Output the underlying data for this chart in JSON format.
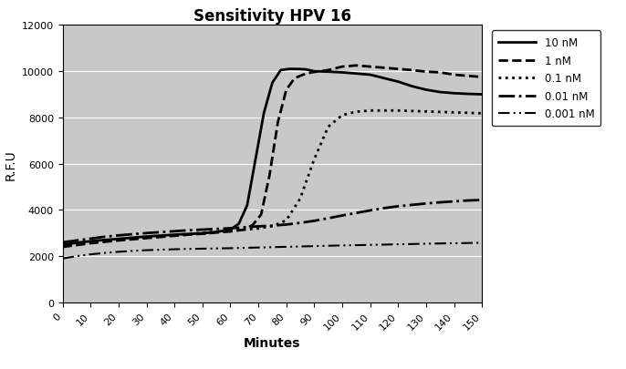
{
  "title": "Sensitivity HPV 16",
  "xlabel": "Minutes",
  "ylabel": "R.F.U",
  "xlim": [
    0,
    150
  ],
  "ylim": [
    0,
    12000
  ],
  "xticks": [
    0,
    10,
    20,
    30,
    40,
    50,
    60,
    70,
    80,
    90,
    100,
    110,
    120,
    130,
    140,
    150
  ],
  "yticks": [
    0,
    2000,
    4000,
    6000,
    8000,
    10000,
    12000
  ],
  "background_color": "#c8c8c8",
  "series": [
    {
      "label": "10 nM",
      "linestyle": "solid",
      "linewidth": 2.0,
      "color": "#000000",
      "x": [
        0,
        5,
        10,
        15,
        20,
        25,
        30,
        35,
        40,
        45,
        50,
        55,
        60,
        63,
        66,
        69,
        72,
        75,
        78,
        81,
        84,
        87,
        90,
        95,
        100,
        105,
        110,
        115,
        120,
        125,
        130,
        135,
        140,
        145,
        150
      ],
      "y": [
        2500,
        2580,
        2650,
        2700,
        2750,
        2800,
        2850,
        2890,
        2930,
        2960,
        2990,
        3050,
        3150,
        3400,
        4200,
        6200,
        8200,
        9500,
        10050,
        10100,
        10100,
        10080,
        10000,
        9980,
        9950,
        9900,
        9850,
        9700,
        9550,
        9350,
        9200,
        9100,
        9050,
        9020,
        9000
      ]
    },
    {
      "label": "1 nM",
      "linestyle": "dashed",
      "linewidth": 2.0,
      "color": "#000000",
      "x": [
        0,
        5,
        10,
        15,
        20,
        25,
        30,
        35,
        40,
        45,
        50,
        55,
        60,
        65,
        68,
        71,
        74,
        77,
        80,
        83,
        86,
        89,
        92,
        95,
        100,
        105,
        110,
        115,
        120,
        125,
        130,
        135,
        140,
        145,
        150
      ],
      "y": [
        2400,
        2480,
        2560,
        2620,
        2680,
        2730,
        2780,
        2830,
        2880,
        2930,
        2970,
        3020,
        3070,
        3150,
        3350,
        3800,
        5500,
        7800,
        9200,
        9700,
        9850,
        9950,
        10000,
        10050,
        10200,
        10250,
        10200,
        10150,
        10100,
        10050,
        9980,
        9950,
        9850,
        9800,
        9750
      ]
    },
    {
      "label": "0.1 nM",
      "linestyle": "dotted",
      "linewidth": 2.0,
      "color": "#000000",
      "x": [
        0,
        5,
        10,
        15,
        20,
        25,
        30,
        35,
        40,
        45,
        50,
        55,
        60,
        65,
        70,
        75,
        80,
        85,
        90,
        95,
        100,
        105,
        110,
        115,
        120,
        125,
        130,
        135,
        140,
        145,
        150
      ],
      "y": [
        2450,
        2530,
        2610,
        2660,
        2710,
        2760,
        2810,
        2860,
        2910,
        2960,
        3010,
        3060,
        3100,
        3150,
        3200,
        3300,
        3550,
        4500,
        6200,
        7600,
        8100,
        8250,
        8300,
        8300,
        8300,
        8280,
        8260,
        8240,
        8220,
        8200,
        8180
      ]
    },
    {
      "label": "0.01 nM",
      "linestyle": "dashdot",
      "linewidth": 2.0,
      "color": "#000000",
      "x": [
        0,
        5,
        10,
        15,
        20,
        25,
        30,
        35,
        40,
        45,
        50,
        55,
        60,
        65,
        70,
        75,
        80,
        85,
        90,
        95,
        100,
        105,
        110,
        115,
        120,
        125,
        130,
        135,
        140,
        145,
        150
      ],
      "y": [
        2600,
        2680,
        2760,
        2840,
        2900,
        2950,
        3000,
        3040,
        3080,
        3120,
        3150,
        3180,
        3210,
        3250,
        3290,
        3320,
        3370,
        3440,
        3530,
        3640,
        3760,
        3870,
        3980,
        4080,
        4160,
        4220,
        4280,
        4330,
        4370,
        4410,
        4430
      ]
    },
    {
      "label": "0.001 nM",
      "linestyle": "dashdotdotted",
      "linewidth": 1.5,
      "color": "#000000",
      "x": [
        0,
        5,
        10,
        15,
        20,
        25,
        30,
        35,
        40,
        45,
        50,
        55,
        60,
        65,
        70,
        75,
        80,
        85,
        90,
        95,
        100,
        105,
        110,
        115,
        120,
        125,
        130,
        135,
        140,
        145,
        150
      ],
      "y": [
        1900,
        2000,
        2080,
        2140,
        2190,
        2230,
        2260,
        2280,
        2300,
        2315,
        2325,
        2335,
        2345,
        2360,
        2375,
        2390,
        2405,
        2420,
        2435,
        2450,
        2465,
        2475,
        2490,
        2500,
        2515,
        2525,
        2540,
        2550,
        2560,
        2570,
        2580
      ]
    }
  ],
  "legend_entries": [
    {
      "label": "10 nM",
      "linestyle": "solid",
      "linewidth": 2.0,
      "dashes": null
    },
    {
      "label": "1 nM",
      "linestyle": "dashed",
      "linewidth": 2.0,
      "dashes": null
    },
    {
      "label": "0.1 nM",
      "linestyle": "dotted",
      "linewidth": 2.0,
      "dashes": null
    },
    {
      "label": "0.01 nM",
      "linestyle": "dashdot",
      "linewidth": 2.0,
      "dashes": null
    },
    {
      "label": "0.001 nM",
      "linestyle": "dashdotdotted",
      "linewidth": 1.5,
      "dashes": null
    }
  ],
  "figsize": [
    6.86,
    4.06
  ],
  "dpi": 100
}
